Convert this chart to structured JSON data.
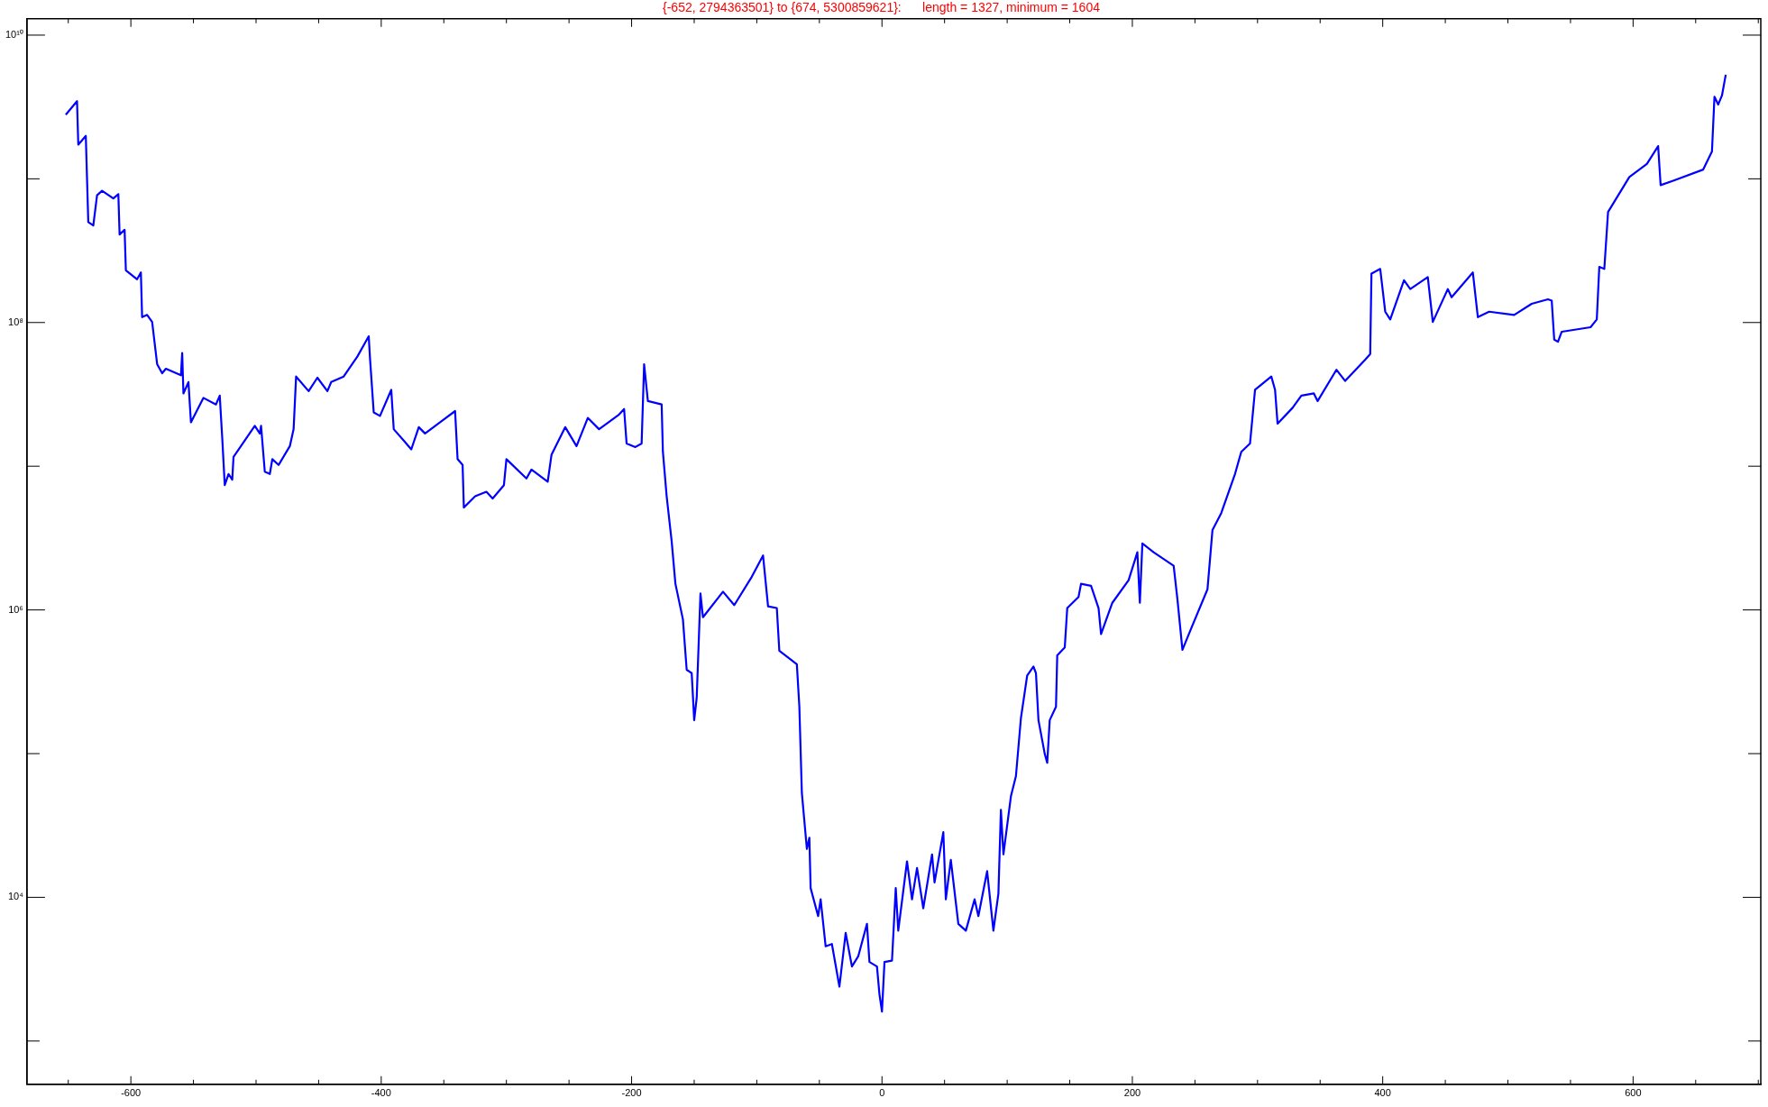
{
  "chart_data": {
    "type": "line",
    "title": "{-652, 2794363501} to {674, 5300859621}:      length = 1327, minimum = 1604",
    "log": "y",
    "grid": false,
    "legend": false,
    "marker": "none",
    "line_style": "solid",
    "xlim": [
      -683,
      702
    ],
    "ylim": [
      500,
      13000000000
    ],
    "xticks": [
      {
        "value": -650,
        "label": null
      },
      -600,
      {
        "value": -550,
        "label": null
      },
      {
        "value": -500,
        "label": null
      },
      {
        "value": -450,
        "label": null
      },
      -400,
      {
        "value": -350,
        "label": null
      },
      {
        "value": -300,
        "label": null
      },
      {
        "value": -250,
        "label": null
      },
      -200,
      {
        "value": -150,
        "label": null
      },
      {
        "value": -100,
        "label": null
      },
      {
        "value": -50,
        "label": null
      },
      0,
      {
        "value": 50,
        "label": null
      },
      {
        "value": 100,
        "label": null
      },
      {
        "value": 150,
        "label": null
      },
      200,
      {
        "value": 250,
        "label": null
      },
      {
        "value": 300,
        "label": null
      },
      {
        "value": 350,
        "label": null
      },
      400,
      {
        "value": 450,
        "label": null
      },
      {
        "value": 500,
        "label": null
      },
      {
        "value": 550,
        "label": null
      },
      600,
      {
        "value": 650,
        "label": null
      },
      {
        "value": 700,
        "label": null
      }
    ],
    "yticks": [
      {
        "value": 1000,
        "label": null
      },
      {
        "value": 10000,
        "label": "10⁴"
      },
      {
        "value": 100000,
        "label": null
      },
      {
        "value": 1000000,
        "label": "10⁶"
      },
      {
        "value": 10000000,
        "label": null
      },
      {
        "value": 100000000,
        "label": "10⁸"
      },
      {
        "value": 1000000000,
        "label": null
      },
      {
        "value": 10000000000,
        "label": "10¹⁰"
      }
    ],
    "series": [
      {
        "color": "#0000ff",
        "x": [
          -652,
          -643,
          -642,
          -636,
          -634,
          -630,
          -627,
          -623,
          -614,
          -610,
          -609,
          -605,
          -604,
          -595,
          -592,
          -591,
          -587,
          -583,
          -579,
          -575,
          -572,
          -560,
          -559,
          -558,
          -554,
          -552,
          -542,
          -532,
          -529,
          -527,
          -525,
          -522,
          -519,
          -518,
          -509,
          -501,
          -497,
          -496,
          -493,
          -489,
          -487,
          -482,
          -473,
          -470,
          -468,
          -458,
          -451,
          -443,
          -440,
          -430,
          -419,
          -410,
          -409,
          -406,
          -401,
          -392,
          -390,
          -382,
          -376,
          -370,
          -365,
          -352,
          -341,
          -339,
          -335,
          -334,
          -325,
          -316,
          -311,
          -302,
          -300,
          -284,
          -280,
          -267,
          -264,
          -253,
          -244,
          -235,
          -226,
          -210,
          -206,
          -204,
          -197,
          -192,
          -190,
          -187,
          -176,
          -175,
          -172,
          -168,
          -165,
          -159,
          -156,
          -152,
          -150,
          -148,
          -145,
          -143,
          -127,
          -118,
          -104,
          -95,
          -91,
          -84,
          -82,
          -68,
          -66,
          -64,
          -60,
          -58,
          -57,
          -51,
          -49,
          -45,
          -40,
          -34,
          -29,
          -24,
          -19,
          -12,
          -10,
          -4,
          -2,
          0,
          2,
          8,
          11,
          13,
          20,
          24,
          28,
          33,
          40,
          42,
          49,
          51,
          55,
          61,
          67,
          74,
          77,
          84,
          89,
          93,
          95,
          97,
          103,
          107,
          111,
          116,
          121,
          123,
          125,
          130,
          132,
          134,
          139,
          140,
          146,
          148,
          157,
          159,
          167,
          173,
          175,
          184,
          197,
          204,
          206,
          208,
          217,
          233,
          236,
          240,
          247,
          260,
          264,
          271,
          282,
          287,
          294,
          298,
          311,
          314,
          316,
          328,
          335,
          345,
          348,
          363,
          370,
          386,
          390,
          391,
          398,
          402,
          406,
          417,
          422,
          436,
          440,
          452,
          455,
          472,
          476,
          485,
          505,
          519,
          532,
          535,
          537,
          540,
          543,
          566,
          571,
          573,
          577,
          580,
          597,
          611,
          620,
          622,
          632,
          656,
          663,
          665,
          668,
          671,
          674
        ],
        "values": [
          2794363501,
          3470000000,
          1730000000,
          1990000000,
          500000000,
          474000000,
          769000000,
          826000000,
          730000000,
          783000000,
          410000000,
          442000000,
          231000000,
          200000000,
          223000000,
          109000000,
          113000000,
          101000000,
          51300000,
          44400000,
          47700000,
          42900000,
          61400000,
          32100000,
          38500000,
          20200000,
          29900000,
          26900000,
          31000000,
          15700000,
          7380000,
          8830000,
          8070000,
          11600000,
          15100000,
          19100000,
          16900000,
          19100000,
          9160000,
          8830000,
          11200000,
          10200000,
          13800000,
          18100000,
          42100000,
          33300000,
          41300000,
          33300000,
          38500000,
          42100000,
          58100000,
          80200000,
          57000000,
          23700000,
          22400000,
          34000000,
          18100000,
          15100000,
          13100000,
          18700000,
          16900000,
          20500000,
          24200000,
          11200000,
          10200000,
          5160000,
          6180000,
          6640000,
          5960000,
          7380000,
          11200000,
          8220000,
          9480000,
          7800000,
          12000000,
          18700000,
          13800000,
          21700000,
          18100000,
          22900000,
          25000000,
          14400000,
          13600000,
          14400000,
          51300000,
          28400000,
          26900000,
          12600000,
          6180000,
          3010000,
          1520000,
          859000,
          383000,
          363000,
          171000,
          244000,
          1300000,
          889000,
          1340000,
          1080000,
          1700000,
          2390000,
          1060000,
          1030000,
          519000,
          419000,
          212000,
          53200,
          21700,
          26000,
          11600,
          7400,
          9680,
          4560,
          4730,
          2390,
          5650,
          3300,
          3880,
          6530,
          3550,
          3300,
          2110,
          1604,
          3550,
          3630,
          11600,
          5860,
          17800,
          9680,
          16000,
          8390,
          19900,
          12700,
          28400,
          9680,
          18200,
          6530,
          5860,
          9680,
          7400,
          15200,
          5860,
          10600,
          40600,
          19900,
          50500,
          69700,
          177000,
          350000,
          404000,
          363000,
          171000,
          99800,
          86300,
          171000,
          212000,
          483000,
          548000,
          1030000,
          1230000,
          1520000,
          1470000,
          1030000,
          679000,
          1120000,
          1610000,
          2520000,
          1120000,
          2900000,
          2520000,
          2030000,
          1190000,
          528000,
          743000,
          1390000,
          3600000,
          4720000,
          8830000,
          12600000,
          14400000,
          34000000,
          42100000,
          34000000,
          19800000,
          25500000,
          31000000,
          32100000,
          28400000,
          46900000,
          39200000,
          55100000,
          60300000,
          219000000,
          236000000,
          119000000,
          105000000,
          197000000,
          171000000,
          207000000,
          101000000,
          171000000,
          150000000,
          223000000,
          109000000,
          119000000,
          113000000,
          135000000,
          145000000,
          142000000,
          76000000,
          73500000,
          86300000,
          92700000,
          105000000,
          244000000,
          236000000,
          588000000,
          1030000000,
          1270000000,
          1690000000,
          904000000,
          970000000,
          1160000000,
          1550000000,
          3730000000,
          3290000000,
          3800000000,
          5300859621
        ]
      }
    ]
  }
}
